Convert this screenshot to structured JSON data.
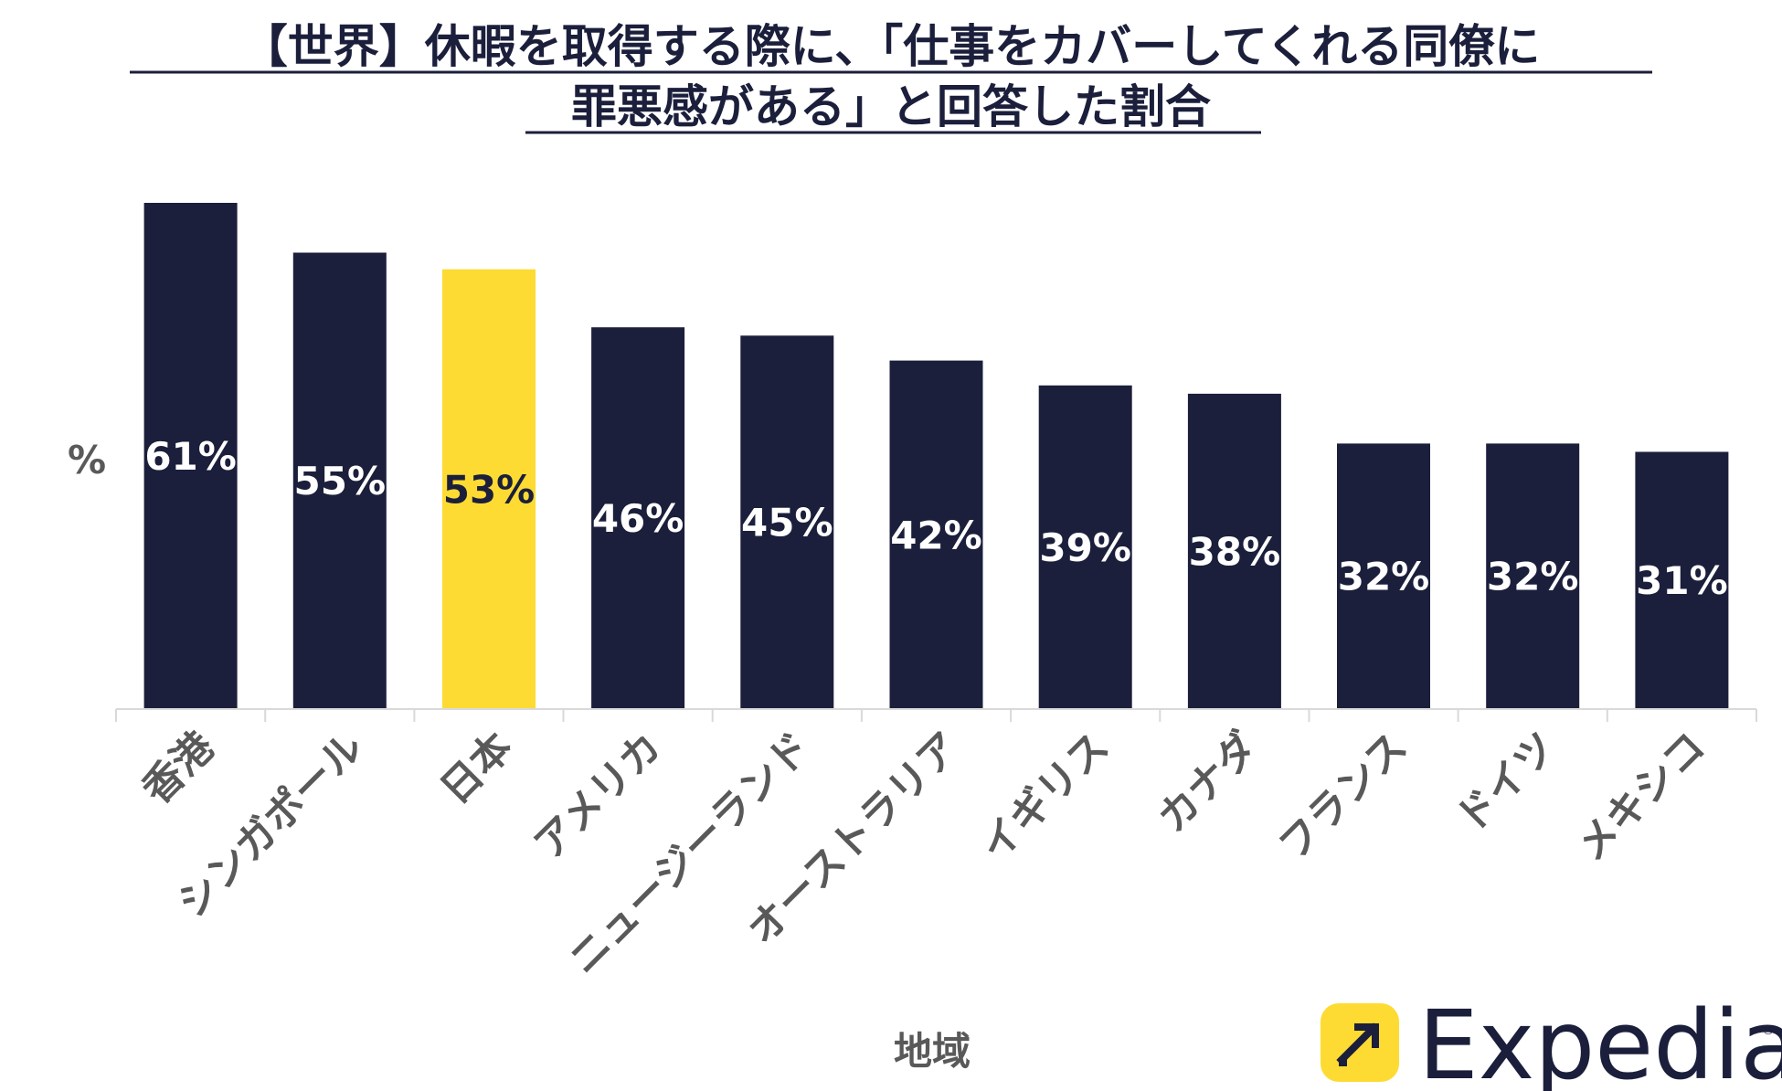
{
  "chart_data": {
    "type": "bar",
    "title_lines": [
      "【世界】休暇を取得する際に、「仕事をカバーしてくれる同僚に",
      "罪悪感がある」と回答した割合"
    ],
    "xlabel": "地域",
    "ylabel": "%",
    "ylim": [
      0,
      61
    ],
    "grid": false,
    "categories": [
      "香港",
      "シンガポール",
      "日本",
      "アメリカ",
      "ニュージーランド",
      "オーストラリア",
      "イギリス",
      "カナダ",
      "フランス",
      "ドイツ",
      "メキシコ"
    ],
    "values": [
      61,
      55,
      53,
      46,
      45,
      42,
      39,
      38,
      32,
      32,
      31
    ],
    "value_labels": [
      "61%",
      "55%",
      "53%",
      "46%",
      "45%",
      "42%",
      "39%",
      "38%",
      "32%",
      "32%",
      "31%"
    ],
    "highlight_index": 2,
    "colors": {
      "bar": "#1b1f3b",
      "highlight": "#fddb32",
      "label_on_bar": "#ffffff",
      "label_on_highlight": "#1b1f3b",
      "axis": "#d9d9d9"
    }
  },
  "brand": {
    "name": "Expedia",
    "registered_mark": "®",
    "icon": "expedia-arrow-icon",
    "colors": {
      "badge": "#fddb32",
      "text": "#1b1f3b"
    }
  }
}
